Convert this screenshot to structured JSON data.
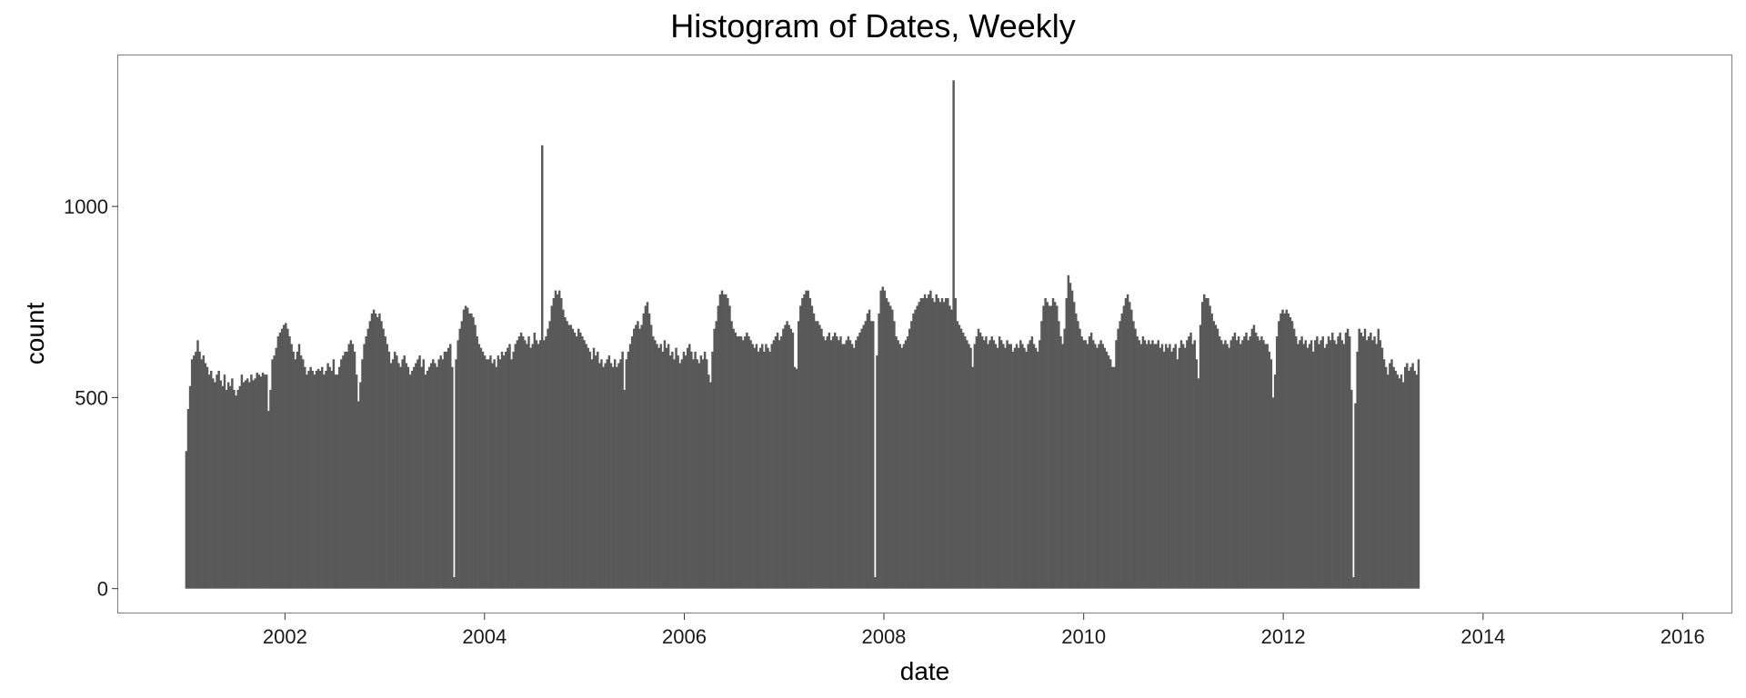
{
  "chart_data": {
    "type": "bar",
    "title": "Histogram of Dates, Weekly",
    "xlabel": "date",
    "ylabel": "count",
    "x_start": "2001-01-01",
    "bin_width_days": 7,
    "xlim": [
      "2000-05-01",
      "2016-07-01"
    ],
    "ylim": [
      -65,
      1395
    ],
    "x_ticks": [
      "2002-01-01",
      "2004-01-01",
      "2006-01-01",
      "2008-01-01",
      "2010-01-01",
      "2012-01-01",
      "2014-01-01",
      "2016-01-01"
    ],
    "x_tick_labels": [
      "2002",
      "2004",
      "2006",
      "2008",
      "2010",
      "2012",
      "2014",
      "2016"
    ],
    "y_ticks": [
      0,
      500,
      1000
    ],
    "y_tick_labels": [
      "0",
      "500",
      "1000"
    ],
    "grid": false,
    "bar_color": "#595959",
    "values": [
      360,
      470,
      530,
      600,
      610,
      620,
      650,
      620,
      600,
      610,
      590,
      580,
      560,
      570,
      550,
      540,
      560,
      570,
      545,
      530,
      560,
      520,
      540,
      530,
      550,
      520,
      505,
      520,
      530,
      560,
      540,
      545,
      550,
      540,
      560,
      545,
      550,
      565,
      560,
      555,
      565,
      560,
      560,
      465,
      520,
      600,
      610,
      630,
      660,
      670,
      680,
      690,
      695,
      680,
      660,
      640,
      620,
      600,
      620,
      640,
      610,
      600,
      580,
      560,
      570,
      580,
      570,
      560,
      570,
      575,
      570,
      580,
      560,
      570,
      590,
      580,
      570,
      600,
      560,
      560,
      580,
      600,
      610,
      620,
      620,
      640,
      650,
      640,
      620,
      560,
      490,
      540,
      600,
      640,
      660,
      680,
      700,
      720,
      730,
      720,
      710,
      720,
      700,
      680,
      660,
      640,
      620,
      590,
      600,
      620,
      610,
      590,
      580,
      600,
      610,
      590,
      580,
      560,
      570,
      580,
      590,
      600,
      610,
      580,
      600,
      560,
      570,
      580,
      590,
      600,
      590,
      580,
      600,
      610,
      600,
      620,
      620,
      630,
      640,
      580,
      30,
      600,
      650,
      680,
      700,
      730,
      740,
      735,
      720,
      720,
      710,
      690,
      660,
      640,
      630,
      620,
      610,
      600,
      600,
      610,
      590,
      600,
      580,
      610,
      600,
      620,
      610,
      620,
      630,
      640,
      600,
      620,
      640,
      650,
      660,
      670,
      660,
      650,
      640,
      660,
      630,
      640,
      670,
      650,
      640,
      650,
      1160,
      650,
      660,
      680,
      700,
      740,
      760,
      780,
      770,
      780,
      760,
      730,
      710,
      700,
      690,
      690,
      680,
      670,
      660,
      680,
      670,
      660,
      650,
      640,
      630,
      620,
      600,
      630,
      610,
      620,
      590,
      600,
      580,
      590,
      600,
      610,
      590,
      580,
      600,
      580,
      590,
      600,
      620,
      520,
      600,
      620,
      640,
      660,
      680,
      690,
      700,
      680,
      690,
      720,
      740,
      750,
      720,
      690,
      660,
      650,
      640,
      630,
      640,
      620,
      650,
      630,
      640,
      610,
      620,
      600,
      630,
      610,
      590,
      600,
      620,
      610,
      630,
      640,
      620,
      600,
      620,
      600,
      590,
      610,
      600,
      620,
      600,
      560,
      540,
      620,
      680,
      700,
      740,
      770,
      780,
      770,
      770,
      760,
      740,
      700,
      680,
      670,
      660,
      660,
      660,
      650,
      660,
      670,
      660,
      650,
      640,
      630,
      640,
      620,
      630,
      640,
      620,
      640,
      630,
      620,
      640,
      650,
      660,
      670,
      650,
      660,
      680,
      690,
      700,
      690,
      680,
      670,
      580,
      575,
      700,
      740,
      760,
      770,
      780,
      780,
      760,
      740,
      720,
      700,
      700,
      690,
      680,
      660,
      650,
      660,
      670,
      650,
      660,
      670,
      660,
      650,
      660,
      640,
      640,
      650,
      660,
      650,
      640,
      630,
      650,
      660,
      670,
      680,
      690,
      700,
      720,
      730,
      700,
      700,
      30,
      610,
      720,
      780,
      790,
      780,
      760,
      750,
      740,
      730,
      700,
      660,
      650,
      640,
      630,
      640,
      650,
      660,
      680,
      700,
      720,
      730,
      740,
      750,
      760,
      760,
      770,
      760,
      770,
      780,
      760,
      750,
      770,
      760,
      750,
      760,
      750,
      760,
      760,
      740,
      730,
      1330,
      760,
      700,
      690,
      680,
      670,
      660,
      650,
      640,
      630,
      580,
      640,
      660,
      680,
      670,
      660,
      650,
      660,
      640,
      650,
      660,
      650,
      640,
      630,
      660,
      650,
      640,
      630,
      650,
      640,
      640,
      620,
      630,
      640,
      630,
      650,
      640,
      630,
      620,
      640,
      650,
      660,
      640,
      630,
      620,
      650,
      700,
      740,
      760,
      750,
      740,
      740,
      760,
      750,
      740,
      700,
      660,
      640,
      680,
      760,
      820,
      800,
      780,
      750,
      720,
      700,
      680,
      660,
      650,
      650,
      640,
      660,
      670,
      650,
      640,
      630,
      640,
      650,
      640,
      630,
      620,
      610,
      600,
      580,
      580,
      650,
      680,
      700,
      720,
      740,
      760,
      770,
      750,
      730,
      700,
      680,
      660,
      650,
      640,
      660,
      650,
      640,
      650,
      640,
      650,
      640,
      640,
      650,
      630,
      640,
      620,
      640,
      630,
      640,
      620,
      630,
      640,
      600,
      630,
      650,
      640,
      630,
      650,
      660,
      670,
      640,
      650,
      600,
      550,
      690,
      750,
      770,
      760,
      760,
      740,
      720,
      700,
      690,
      680,
      660,
      650,
      640,
      650,
      640,
      630,
      650,
      660,
      670,
      650,
      660,
      640,
      650,
      660,
      670,
      650,
      660,
      680,
      690,
      670,
      660,
      650,
      660,
      650,
      640,
      640,
      620,
      600,
      500,
      560,
      660,
      700,
      720,
      730,
      720,
      730,
      720,
      710,
      700,
      680,
      660,
      640,
      650,
      660,
      640,
      650,
      630,
      640,
      650,
      620,
      650,
      660,
      640,
      650,
      660,
      630,
      640,
      660,
      650,
      670,
      650,
      640,
      660,
      670,
      650,
      640,
      670,
      680,
      660,
      520,
      30,
      485,
      620,
      680,
      670,
      660,
      680,
      650,
      660,
      670,
      650,
      660,
      640,
      680,
      650,
      630,
      600,
      580,
      560,
      590,
      600,
      580,
      570,
      560,
      550,
      560,
      540,
      580,
      590,
      570,
      580,
      590,
      570,
      560,
      600
    ]
  }
}
